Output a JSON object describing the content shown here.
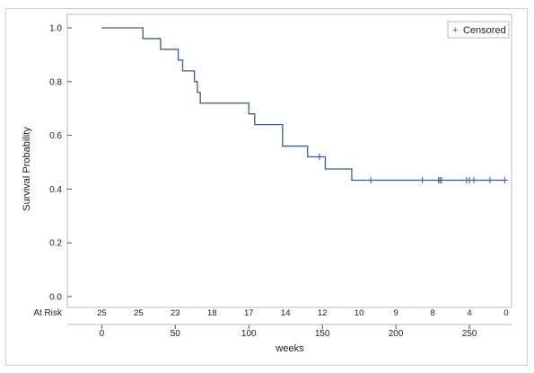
{
  "chart_data": {
    "type": "line",
    "subtype": "kaplan-meier",
    "xlabel": "weeks",
    "ylabel": "Survival Probability",
    "xlim": [
      -10,
      275
    ],
    "ylim": [
      0,
      1.0
    ],
    "x_ticks": [
      "0",
      "50",
      "100",
      "150",
      "200",
      "250"
    ],
    "x_tick_values": [
      0,
      50,
      100,
      150,
      200,
      250
    ],
    "y_ticks": [
      "0.0",
      "0.2",
      "0.4",
      "0.6",
      "0.8",
      "1.0"
    ],
    "y_tick_values": [
      0.0,
      0.2,
      0.4,
      0.6,
      0.8,
      1.0
    ],
    "legend": {
      "label": "Censored",
      "symbol": "+",
      "position": "top-right"
    },
    "series": [
      {
        "color": "#3d5a8a",
        "steps": [
          {
            "x": 0,
            "y": 1.0
          },
          {
            "x": 28,
            "y": 0.96
          },
          {
            "x": 40,
            "y": 0.92
          },
          {
            "x": 52,
            "y": 0.88
          },
          {
            "x": 55,
            "y": 0.84
          },
          {
            "x": 63,
            "y": 0.8
          },
          {
            "x": 65,
            "y": 0.76
          },
          {
            "x": 67,
            "y": 0.72
          },
          {
            "x": 100,
            "y": 0.68
          },
          {
            "x": 104,
            "y": 0.64
          },
          {
            "x": 123,
            "y": 0.56
          },
          {
            "x": 140,
            "y": 0.52
          },
          {
            "x": 152,
            "y": 0.475
          },
          {
            "x": 170,
            "y": 0.433
          }
        ],
        "end_x": 274,
        "censored": [
          {
            "x": 148,
            "y": 0.52
          },
          {
            "x": 183,
            "y": 0.433
          },
          {
            "x": 218,
            "y": 0.433
          },
          {
            "x": 229,
            "y": 0.433
          },
          {
            "x": 230,
            "y": 0.433
          },
          {
            "x": 231,
            "y": 0.433
          },
          {
            "x": 248,
            "y": 0.433
          },
          {
            "x": 250,
            "y": 0.433
          },
          {
            "x": 253,
            "y": 0.433
          },
          {
            "x": 264,
            "y": 0.433
          },
          {
            "x": 274,
            "y": 0.433
          }
        ]
      }
    ],
    "at_risk": {
      "label": "At Risk",
      "x": [
        0,
        25,
        50,
        75,
        100,
        125,
        150,
        175,
        200,
        225,
        250,
        275
      ],
      "values": [
        "25",
        "25",
        "23",
        "18",
        "17",
        "14",
        "12",
        "10",
        "9",
        "8",
        "4",
        "0"
      ]
    }
  }
}
